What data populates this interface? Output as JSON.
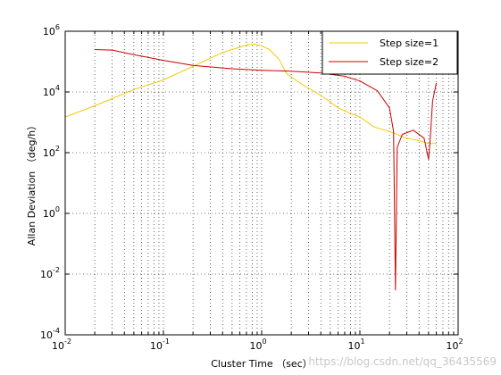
{
  "chart_data": {
    "type": "line",
    "title": "",
    "xlabel": "Cluster Time （sec）",
    "ylabel": "Allan Deviation （deg/h）",
    "x_scale": "log",
    "y_scale": "log",
    "xlim": [
      0.01,
      100
    ],
    "ylim": [
      0.0001,
      1000000
    ],
    "grid": true,
    "legend_position": "top-right",
    "x_ticks": [
      {
        "base": "10",
        "exp": "-2",
        "value": 0.01
      },
      {
        "base": "10",
        "exp": "-1",
        "value": 0.1
      },
      {
        "base": "10",
        "exp": "0",
        "value": 1
      },
      {
        "base": "10",
        "exp": "1",
        "value": 10
      },
      {
        "base": "10",
        "exp": "2",
        "value": 100
      }
    ],
    "y_ticks": [
      {
        "base": "10",
        "exp": "-4",
        "value": 0.0001
      },
      {
        "base": "10",
        "exp": "-2",
        "value": 0.01
      },
      {
        "base": "10",
        "exp": "0",
        "value": 1
      },
      {
        "base": "10",
        "exp": "2",
        "value": 100
      },
      {
        "base": "10",
        "exp": "4",
        "value": 10000
      },
      {
        "base": "10",
        "exp": "6",
        "value": 1000000
      }
    ],
    "series": [
      {
        "name": "Step size=1",
        "color": "#f5c800",
        "x": [
          0.01,
          0.02,
          0.05,
          0.1,
          0.2,
          0.4,
          0.7,
          0.85,
          1.0,
          1.2,
          1.5,
          1.8,
          2.2,
          2.8,
          3.5,
          4.5,
          6,
          8,
          10,
          14,
          20,
          30,
          40,
          50,
          60
        ],
        "y": [
          1500,
          3500,
          12000,
          25000,
          70000,
          200000,
          350000,
          380000,
          330000,
          250000,
          120000,
          40000,
          25000,
          15000,
          10000,
          6000,
          3000,
          2000,
          1500,
          700,
          500,
          300,
          250,
          200,
          200
        ]
      },
      {
        "name": "Step size=2",
        "color": "#cc0000",
        "x": [
          0.02,
          0.03,
          0.05,
          0.1,
          0.2,
          0.5,
          1,
          2,
          4,
          7,
          10,
          15,
          20,
          22,
          23,
          24,
          27,
          35,
          45,
          50,
          52,
          55,
          60
        ],
        "y": [
          250000,
          240000,
          170000,
          110000,
          75000,
          58000,
          52000,
          48000,
          42000,
          33000,
          23000,
          11000,
          3000,
          500,
          0.003,
          150,
          400,
          550,
          300,
          60,
          300,
          5000,
          20000
        ]
      }
    ]
  },
  "watermark": "https://blog.csdn.net/qq_36435569"
}
